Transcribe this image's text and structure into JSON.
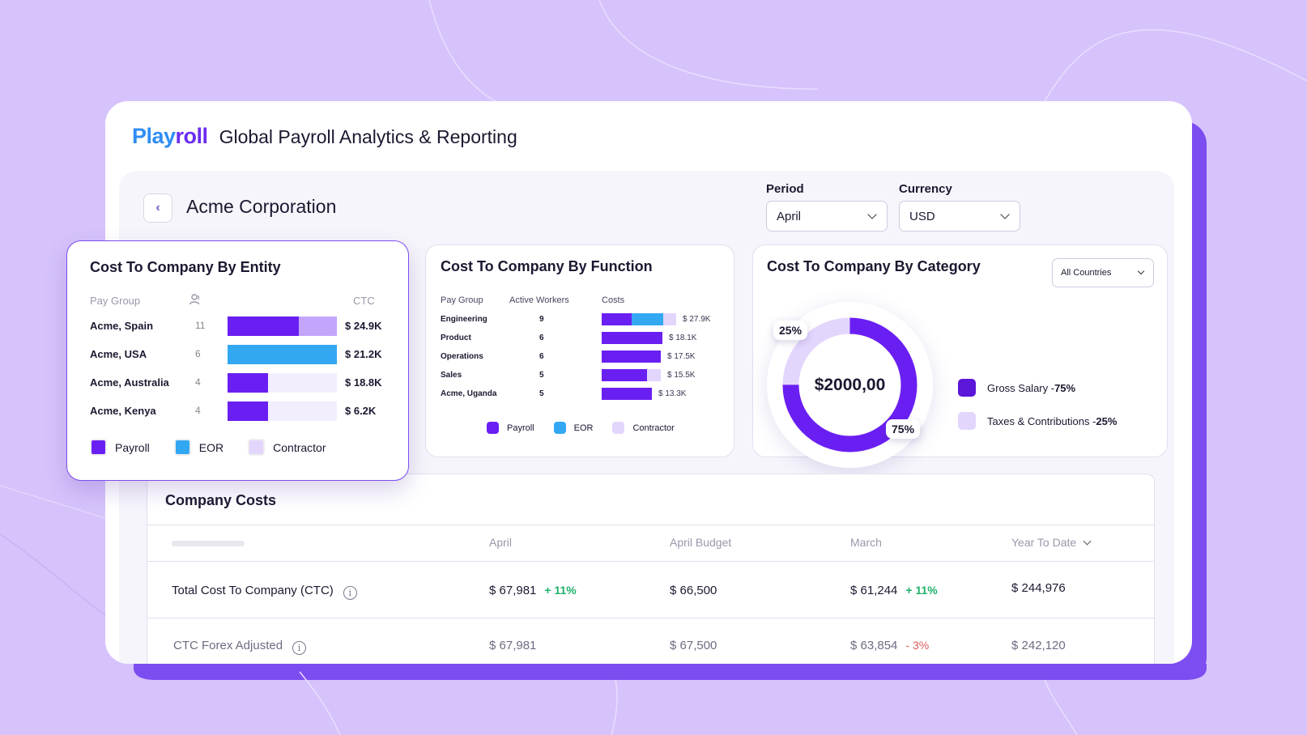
{
  "header": {
    "logo_blue": "Play",
    "logo_purple": "roll",
    "app_title": "Global Payroll Analytics & Reporting"
  },
  "page": {
    "back_icon": "chevron-left-icon",
    "company_name": "Acme Corporation"
  },
  "filters": {
    "period": {
      "label": "Period",
      "value": "April"
    },
    "currency": {
      "label": "Currency",
      "value": "USD"
    }
  },
  "colors": {
    "payroll": "#6a1ff2",
    "eor": "#33a8f2",
    "contractor": "#c3a6fb",
    "contractor_light": "#e3d6fd",
    "track": "#f3eefd",
    "positive": "#1fb16a",
    "negative": "#e25a5a"
  },
  "entity_card": {
    "title": "Cost To Company By Entity",
    "col_pay_group": "Pay Group",
    "col_workers_icon": "person-icon",
    "col_ctc": "CTC",
    "rows": [
      {
        "name": "Acme, Spain",
        "workers": "11",
        "ctc": "$ 24.9K",
        "payroll": 0.65,
        "eor": 0,
        "contractor": 0.35
      },
      {
        "name": "Acme, USA",
        "workers": "6",
        "ctc": "$ 21.2K",
        "payroll": 0,
        "eor": 1.0,
        "contractor": 0
      },
      {
        "name": "Acme, Australia",
        "workers": "4",
        "ctc": "$ 18.8K",
        "payroll": 0.37,
        "eor": 0,
        "contractor": 0
      },
      {
        "name": "Acme, Kenya",
        "workers": "4",
        "ctc": "$ 6.2K",
        "payroll": 0.37,
        "eor": 0,
        "contractor": 0
      }
    ],
    "legend": [
      "Payroll",
      "EOR",
      "Contractor"
    ]
  },
  "function_card": {
    "title": "Cost To Company By Function",
    "col_pay_group": "Pay Group",
    "col_active_workers": "Active Workers",
    "col_costs": "Costs",
    "rows": [
      {
        "name": "Engineering",
        "workers": "9",
        "cost": "$ 27.9K",
        "payroll": 0.39,
        "eor": 0.42,
        "contractor": 0.17
      },
      {
        "name": "Product",
        "workers": "6",
        "cost": "$ 18.1K",
        "payroll": 0.8,
        "eor": 0,
        "contractor": 0
      },
      {
        "name": "Operations",
        "workers": "6",
        "cost": "$ 17.5K",
        "payroll": 0.78,
        "eor": 0,
        "contractor": 0
      },
      {
        "name": "Sales",
        "workers": "5",
        "cost": "$ 15.5K",
        "payroll": 0.6,
        "eor": 0,
        "contractor": 0.18
      },
      {
        "name": "Acme, Uganda",
        "workers": "5",
        "cost": "$ 13.3K",
        "payroll": 0.66,
        "eor": 0,
        "contractor": 0
      }
    ],
    "legend": [
      "Payroll",
      "EOR",
      "Contractor"
    ]
  },
  "category_card": {
    "title": "Cost To Company By Category",
    "filter_value": "All Countries",
    "total": "$2000,00",
    "badge_small": "25%",
    "badge_large": "75%",
    "slices": [
      {
        "label": "Gross Salary - ",
        "pct_label": "75%",
        "value": 75
      },
      {
        "label": "Taxes & Contributions - ",
        "pct_label": "25%",
        "value": 25
      }
    ]
  },
  "company_costs": {
    "title": "Company Costs",
    "columns": [
      "April",
      "April Budget",
      "March",
      "Year To Date"
    ],
    "rows": [
      {
        "label": "Total Cost To Company (CTC)",
        "april": "$ 67,981",
        "april_delta": "+ 11%",
        "budget": "$ 66,500",
        "march": "$ 61,244",
        "march_delta": "+ 11%",
        "ytd": "$ 244,976"
      },
      {
        "label": "CTC Forex Adjusted",
        "april": "$ 67,981",
        "budget": "$ 67,500",
        "march": "$ 63,854",
        "march_delta": "- 3%",
        "ytd": "$ 242,120"
      }
    ]
  }
}
